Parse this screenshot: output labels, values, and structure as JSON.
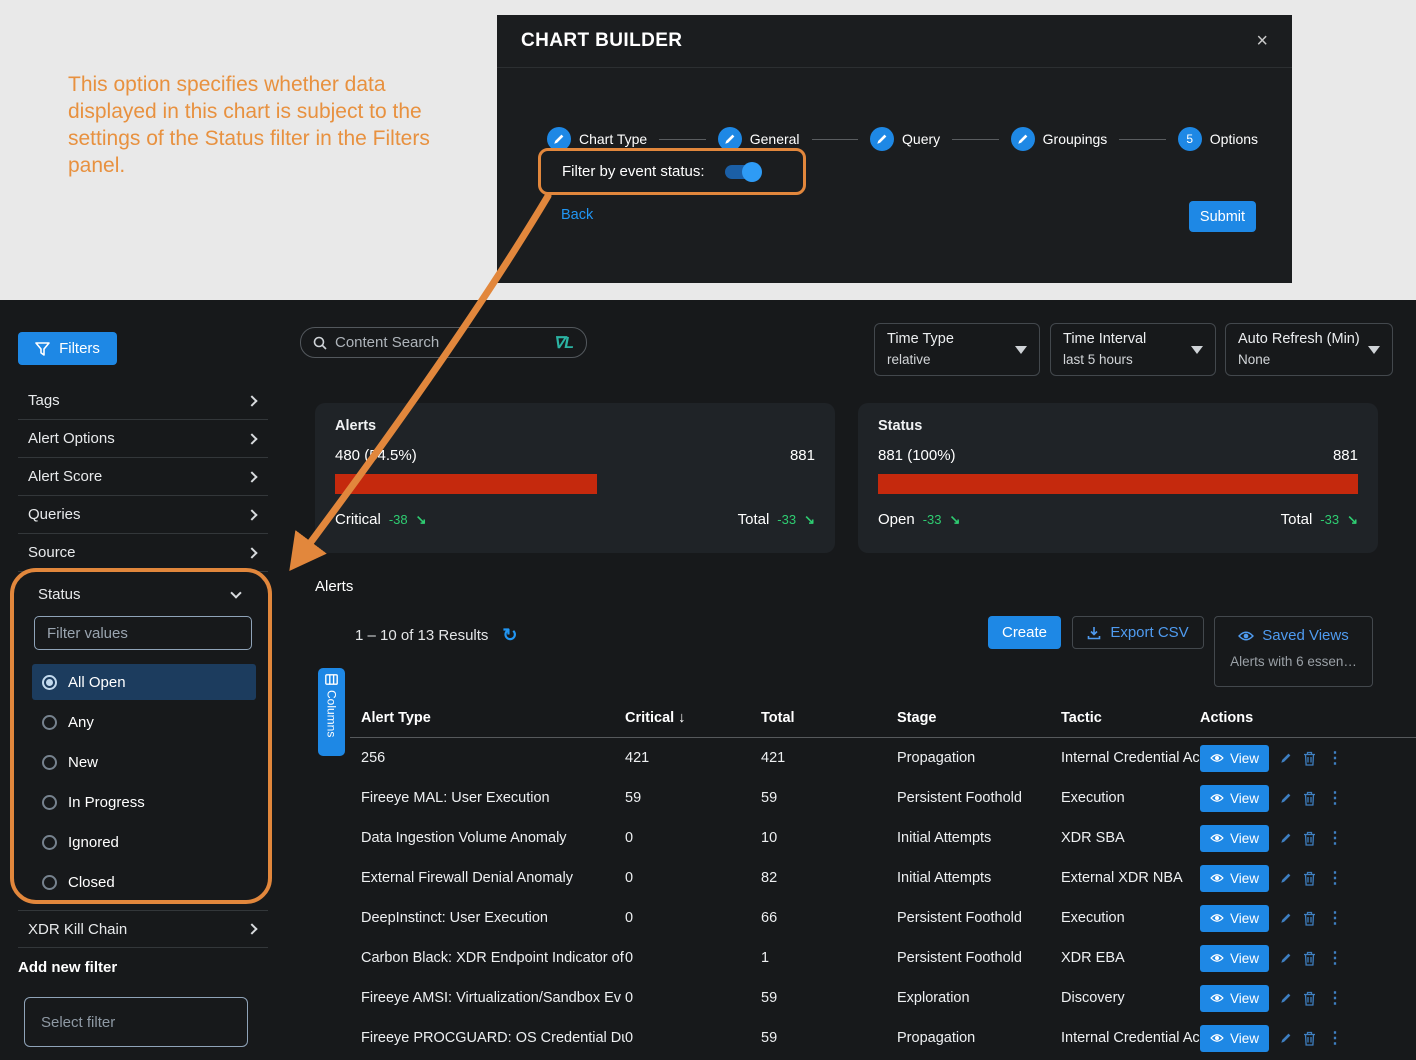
{
  "annotation": {
    "text": "This option specifies whether data displayed in this chart is subject to the settings of the Status filter in the Filters panel."
  },
  "chart_builder": {
    "title": "CHART BUILDER",
    "close_icon": "×",
    "steps": [
      {
        "label": "Chart Type"
      },
      {
        "label": "General"
      },
      {
        "label": "Query"
      },
      {
        "label": "Groupings"
      },
      {
        "label": "Options",
        "number": "5"
      }
    ],
    "toggle_label": "Filter by event status:",
    "toggle_on": true,
    "back_label": "Back",
    "submit_label": "Submit"
  },
  "sidebar": {
    "filters_button": "Filters",
    "items": [
      {
        "label": "Tags"
      },
      {
        "label": "Alert Options"
      },
      {
        "label": "Alert Score"
      },
      {
        "label": "Queries"
      },
      {
        "label": "Source"
      }
    ],
    "status_section": {
      "title": "Status",
      "filter_placeholder": "Filter values",
      "options": [
        {
          "label": "All Open",
          "selected": true
        },
        {
          "label": "Any",
          "selected": false
        },
        {
          "label": "New",
          "selected": false
        },
        {
          "label": "In Progress",
          "selected": false
        },
        {
          "label": "Ignored",
          "selected": false
        },
        {
          "label": "Closed",
          "selected": false
        }
      ]
    },
    "xdr_item": "XDR Kill Chain",
    "add_new_filter_label": "Add new filter",
    "select_filter_placeholder": "Select filter"
  },
  "toolbar": {
    "search_placeholder": "Content Search",
    "lucene_icon": "∇L",
    "dropdowns": [
      {
        "label": "Time Type",
        "value": "relative"
      },
      {
        "label": "Time Interval",
        "value": "last 5 hours"
      },
      {
        "label": "Auto Refresh (Min)",
        "value": "None"
      }
    ]
  },
  "summary_cards": [
    {
      "title": "Alerts",
      "left_value": "480 (54.5%)",
      "right_value": "881",
      "bar_percent": 54.5,
      "footer_left_label": "Critical",
      "footer_left_delta": "-38",
      "footer_right_label": "Total",
      "footer_right_delta": "-33"
    },
    {
      "title": "Status",
      "left_value": "881 (100%)",
      "right_value": "881",
      "bar_percent": 100,
      "footer_left_label": "Open",
      "footer_left_delta": "-33",
      "footer_right_label": "Total",
      "footer_right_delta": "-33"
    }
  ],
  "alerts_section": {
    "heading": "Alerts",
    "results_text": "1 – 10 of 13 Results",
    "create_label": "Create",
    "export_label": "Export CSV",
    "saved_views_label": "Saved Views",
    "saved_views_sub": "Alerts with 6 essen…",
    "columns_label": "Columns",
    "table": {
      "headers": [
        "Alert Type",
        "Critical",
        "Total",
        "Stage",
        "Tactic",
        "Actions"
      ],
      "sort_column": "Critical",
      "sort_direction": "desc",
      "view_label": "View",
      "rows": [
        {
          "alert_type": "256",
          "critical": "421",
          "total": "421",
          "stage": "Propagation",
          "tactic": "Internal Credential Ac"
        },
        {
          "alert_type": "Fireeye MAL: User Execution",
          "critical": "59",
          "total": "59",
          "stage": "Persistent Foothold",
          "tactic": "Execution"
        },
        {
          "alert_type": "Data Ingestion Volume Anomaly",
          "critical": "0",
          "total": "10",
          "stage": "Initial Attempts",
          "tactic": "XDR SBA"
        },
        {
          "alert_type": "External Firewall Denial Anomaly",
          "critical": "0",
          "total": "82",
          "stage": "Initial Attempts",
          "tactic": "External XDR NBA"
        },
        {
          "alert_type": "DeepInstinct: User Execution",
          "critical": "0",
          "total": "66",
          "stage": "Persistent Foothold",
          "tactic": "Execution"
        },
        {
          "alert_type": "Carbon Black: XDR Endpoint Indicator of",
          "critical": "0",
          "total": "1",
          "stage": "Persistent Foothold",
          "tactic": "XDR EBA"
        },
        {
          "alert_type": "Fireeye AMSI: Virtualization/Sandbox Ev",
          "critical": "0",
          "total": "59",
          "stage": "Exploration",
          "tactic": "Discovery"
        },
        {
          "alert_type": "Fireeye PROCGUARD: OS Credential Du",
          "critical": "0",
          "total": "59",
          "stage": "Propagation",
          "tactic": "Internal Credential Ac"
        }
      ]
    }
  },
  "colors": {
    "accent_blue": "#1e88e5",
    "link_blue": "#4f9bf0",
    "highlight_orange": "#e2873c",
    "bar_red": "#c5290d",
    "positive_green": "#2ecc71",
    "lucene_teal": "#2bb3a3",
    "selected_row_blue": "#1c3c5e"
  }
}
